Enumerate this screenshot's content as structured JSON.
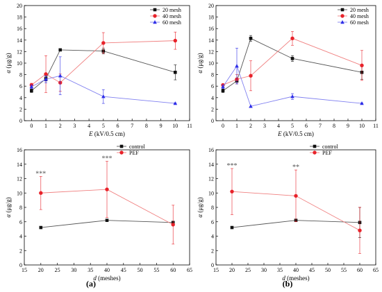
{
  "colors": {
    "black": "#111111",
    "red": "#e8222a",
    "blue": "#2e2ee8",
    "pink": "#f08080"
  },
  "panel_labels": [
    "(a)",
    "(b)"
  ],
  "chart_data": [
    {
      "type": "line",
      "xlabel_var": "E",
      "xlabel_unit": " (kV/0.5 cm)",
      "ylabel_var": "α",
      "ylabel_unit": " (μg/g)",
      "xlim": [
        -0.5,
        11
      ],
      "ylim": [
        0,
        20
      ],
      "xticks": [
        0,
        1,
        2,
        3,
        4,
        5,
        6,
        7,
        8,
        9,
        10,
        11
      ],
      "yticks": [
        0,
        2,
        4,
        6,
        8,
        10,
        12,
        14,
        16,
        18,
        20
      ],
      "legend_position": "top-right",
      "x": [
        0,
        1,
        2,
        5,
        10
      ],
      "series": [
        {
          "name": "20 mesh",
          "marker": "square",
          "color": "#111111",
          "values": [
            5.2,
            7.3,
            12.3,
            12.1,
            8.4
          ],
          "errors": [
            0.3,
            0.4,
            0,
            0.5,
            1.3
          ]
        },
        {
          "name": "40 mesh",
          "marker": "circle",
          "color": "#e8222a",
          "values": [
            6.2,
            8.1,
            6.6,
            13.5,
            13.9
          ],
          "errors": [
            0.3,
            3.2,
            1.5,
            1.8,
            1.5
          ]
        },
        {
          "name": "60 mesh",
          "marker": "triangle",
          "color": "#2e2ee8",
          "values": [
            5.9,
            7.2,
            7.8,
            4.2,
            3.0
          ],
          "errors": [
            0.3,
            0.6,
            3.3,
            1.2,
            0.1
          ]
        }
      ]
    },
    {
      "type": "line",
      "xlabel_var": "E",
      "xlabel_unit": " (kV/0.5 cm)",
      "ylabel_var": "α",
      "ylabel_unit": " (μg/g)",
      "xlim": [
        -0.5,
        11
      ],
      "ylim": [
        0,
        20
      ],
      "xticks": [
        0,
        1,
        2,
        3,
        4,
        5,
        6,
        7,
        8,
        9,
        10,
        11
      ],
      "yticks": [
        0,
        2,
        4,
        6,
        8,
        10,
        12,
        14,
        16,
        18,
        20
      ],
      "legend_position": "top-right",
      "x": [
        0,
        1,
        2,
        5,
        10
      ],
      "series": [
        {
          "name": "20 mesh",
          "marker": "square",
          "color": "#111111",
          "values": [
            5.2,
            6.9,
            14.3,
            10.8,
            8.4
          ],
          "errors": [
            0.3,
            0.5,
            0.5,
            0.5,
            1.2
          ]
        },
        {
          "name": "40 mesh",
          "marker": "circle",
          "color": "#e8222a",
          "values": [
            6.2,
            7.2,
            7.8,
            14.3,
            9.6
          ],
          "errors": [
            0.2,
            0.8,
            2.6,
            1.2,
            2.6
          ]
        },
        {
          "name": "60 mesh",
          "marker": "triangle",
          "color": "#2e2ee8",
          "values": [
            5.9,
            9.5,
            2.5,
            4.2,
            3.0
          ],
          "errors": [
            0.3,
            3.1,
            0,
            0.5,
            0.1
          ]
        }
      ]
    },
    {
      "type": "line",
      "xlabel_var": "d",
      "xlabel_unit": " (meshes)",
      "ylabel_var": "α",
      "ylabel_unit": " (μg/g)",
      "xlim": [
        15,
        65
      ],
      "ylim": [
        0,
        16
      ],
      "xticks": [
        15,
        20,
        25,
        30,
        35,
        40,
        45,
        50,
        55,
        60,
        65
      ],
      "yticks": [
        0,
        2,
        4,
        6,
        8,
        10,
        12,
        14,
        16
      ],
      "legend_position": "top-right",
      "x": [
        20,
        40,
        60
      ],
      "annotations": [
        {
          "x": 20,
          "text": "***"
        },
        {
          "x": 40,
          "text": "***"
        }
      ],
      "series": [
        {
          "name": "control",
          "marker": "square",
          "color": "#111111",
          "values": [
            5.2,
            6.2,
            5.9
          ],
          "errors": [
            0,
            0,
            0
          ]
        },
        {
          "name": "PEF",
          "marker": "circle",
          "color": "#e8222a",
          "values": [
            10.0,
            10.5,
            5.6
          ],
          "errors": [
            2.3,
            3.9,
            2.7
          ]
        }
      ]
    },
    {
      "type": "line",
      "xlabel_var": "d",
      "xlabel_unit": " (meshes)",
      "ylabel_var": "α",
      "ylabel_unit": " (μg/g)",
      "xlim": [
        15,
        65
      ],
      "ylim": [
        0,
        16
      ],
      "xticks": [
        15,
        20,
        25,
        30,
        35,
        40,
        45,
        50,
        55,
        60,
        65
      ],
      "yticks": [
        0,
        2,
        4,
        6,
        8,
        10,
        12,
        14,
        16
      ],
      "legend_position": "top-right",
      "x": [
        20,
        40,
        60
      ],
      "annotations": [
        {
          "x": 20,
          "text": "***"
        },
        {
          "x": 40,
          "text": "**"
        }
      ],
      "series": [
        {
          "name": "control",
          "marker": "square",
          "color": "#111111",
          "values": [
            5.2,
            6.2,
            5.9
          ],
          "errors": [
            0,
            0,
            2.1
          ]
        },
        {
          "name": "PEF",
          "marker": "circle",
          "color": "#e8222a",
          "values": [
            10.2,
            9.6,
            4.8
          ],
          "errors": [
            3.2,
            3.6,
            3.2
          ]
        }
      ]
    }
  ]
}
